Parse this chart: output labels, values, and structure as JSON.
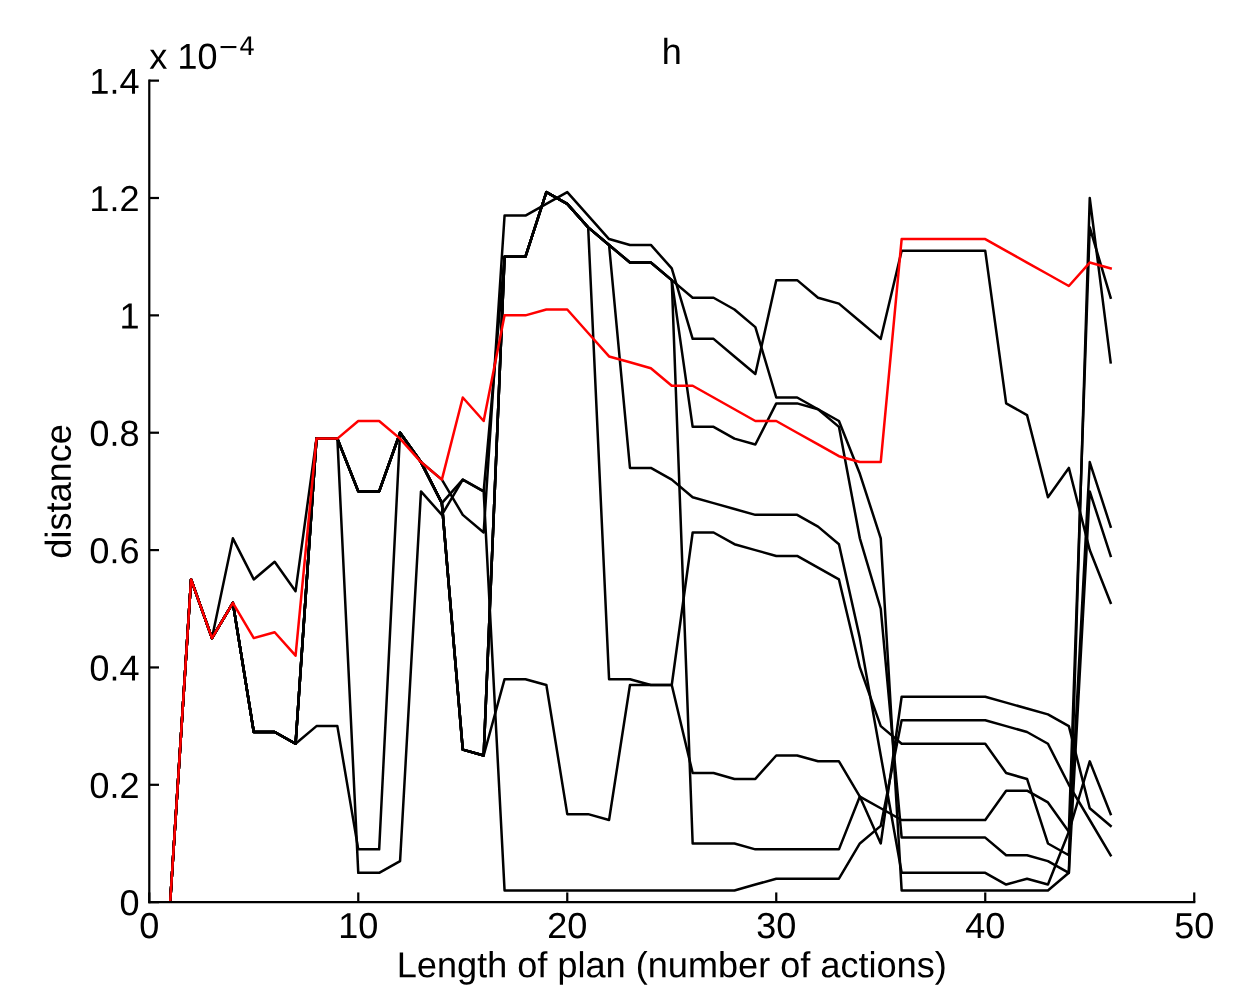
{
  "chart_data": {
    "type": "line",
    "title": "h",
    "xlabel": "Length of plan (number of actions)",
    "ylabel": "distance",
    "annotations": [
      "x 10$^{−4}$"
    ],
    "x": [
      1,
      2,
      3,
      4,
      5,
      6,
      7,
      8,
      9,
      10,
      11,
      12,
      13,
      14,
      15,
      16,
      17,
      18,
      19,
      20,
      21,
      22,
      23,
      24,
      25,
      26,
      27,
      28,
      29,
      30,
      31,
      32,
      33,
      34,
      35,
      36,
      37,
      38,
      39,
      40,
      41,
      42,
      43,
      44,
      45,
      46
    ],
    "xlim": [
      0,
      50
    ],
    "xticks": [
      0,
      10,
      20,
      30,
      40,
      50
    ],
    "ylim": [
      0,
      1.4
    ],
    "yticks": [
      0,
      0.2,
      0.4,
      0.6,
      0.8,
      1,
      1.2,
      1.4
    ],
    "grid": false,
    "legend": false,
    "marker": "none",
    "line_style": "solid",
    "series": [
      {
        "color": "#000000",
        "values": [
          0,
          0.55,
          0.45,
          0.51,
          0.29,
          0.29,
          0.27,
          0.79,
          0.79,
          0.7,
          0.7,
          0.8,
          0.75,
          0.68,
          0.26,
          0.25,
          1.1,
          1.1,
          1.21,
          1.19,
          1.15,
          1.12,
          1.09,
          1.09,
          1.06,
          1.03,
          1.03,
          1.01,
          0.98,
          0.86,
          0.86,
          0.84,
          0.82,
          0.73,
          0.62,
          0.02,
          0.02,
          0.02,
          0.02,
          0.02,
          0.02,
          0.02,
          0.02,
          0.05,
          1.2,
          0.92
        ]
      },
      {
        "color": "#000000",
        "values": [
          0,
          0.55,
          0.45,
          0.62,
          0.55,
          0.58,
          0.53,
          0.79,
          0.79,
          0.7,
          0.7,
          0.8,
          0.75,
          0.72,
          0.66,
          0.63,
          1.17,
          1.17,
          1.19,
          1.21,
          1.17,
          1.13,
          1.12,
          1.12,
          1.08,
          0.96,
          0.96,
          0.93,
          0.9,
          1.06,
          1.06,
          1.03,
          1.02,
          0.99,
          0.96,
          1.11,
          1.11,
          1.11,
          1.11,
          1.11,
          0.85,
          0.83,
          0.69,
          0.74,
          0.6,
          0.51
        ]
      },
      {
        "color": "#000000",
        "values": [
          0,
          0.55,
          0.45,
          0.51,
          0.29,
          0.29,
          0.27,
          0.3,
          0.3,
          0.09,
          0.09,
          0.8,
          0.75,
          0.68,
          0.72,
          0.7,
          0.02,
          0.02,
          0.02,
          0.02,
          0.02,
          0.02,
          0.02,
          0.02,
          0.02,
          0.02,
          0.02,
          0.02,
          0.03,
          0.04,
          0.04,
          0.04,
          0.04,
          0.1,
          0.13,
          0.31,
          0.31,
          0.31,
          0.31,
          0.31,
          0.3,
          0.29,
          0.27,
          0.2,
          0.14,
          0.08
        ]
      },
      {
        "color": "#000000",
        "values": [
          0,
          0.55,
          0.45,
          0.51,
          0.29,
          0.29,
          0.27,
          0.79,
          0.79,
          0.05,
          0.05,
          0.07,
          0.7,
          0.66,
          0.72,
          0.7,
          1.1,
          1.1,
          1.21,
          1.19,
          1.15,
          1.12,
          0.74,
          0.74,
          0.72,
          0.69,
          0.68,
          0.67,
          0.66,
          0.66,
          0.66,
          0.64,
          0.61,
          0.45,
          0.25,
          0.05,
          0.05,
          0.05,
          0.05,
          0.05,
          0.03,
          0.04,
          0.03,
          0.12,
          1.15,
          1.03
        ]
      },
      {
        "color": "#000000",
        "values": [
          0,
          0.55,
          0.45,
          0.51,
          0.29,
          0.29,
          0.27,
          0.79,
          0.79,
          0.7,
          0.7,
          0.8,
          0.75,
          0.68,
          0.26,
          0.25,
          1.1,
          1.1,
          1.21,
          1.19,
          1.15,
          1.12,
          1.09,
          1.09,
          1.06,
          0.81,
          0.81,
          0.79,
          0.78,
          0.85,
          0.85,
          0.84,
          0.81,
          0.62,
          0.5,
          0.11,
          0.11,
          0.11,
          0.11,
          0.11,
          0.08,
          0.08,
          0.07,
          0.05,
          0.7,
          0.59
        ]
      },
      {
        "color": "#000000",
        "values": [
          0,
          0.55,
          0.45,
          0.51,
          0.29,
          0.29,
          0.27,
          0.79,
          0.79,
          0.7,
          0.7,
          0.8,
          0.75,
          0.68,
          0.26,
          0.25,
          0.38,
          0.38,
          0.37,
          0.15,
          0.15,
          0.14,
          0.37,
          0.37,
          0.37,
          0.63,
          0.63,
          0.61,
          0.6,
          0.59,
          0.59,
          0.57,
          0.55,
          0.4,
          0.3,
          0.27,
          0.27,
          0.27,
          0.27,
          0.27,
          0.22,
          0.21,
          0.1,
          0.08,
          0.75,
          0.64
        ]
      },
      {
        "color": "#000000",
        "values": [
          0,
          0.55,
          0.45,
          0.51,
          0.29,
          0.29,
          0.27,
          0.79,
          0.79,
          0.7,
          0.7,
          0.8,
          0.75,
          0.68,
          0.26,
          0.25,
          1.1,
          1.1,
          1.21,
          1.19,
          1.15,
          0.38,
          0.38,
          0.37,
          0.37,
          0.22,
          0.22,
          0.21,
          0.21,
          0.25,
          0.25,
          0.24,
          0.24,
          0.18,
          0.1,
          0.35,
          0.35,
          0.35,
          0.35,
          0.35,
          0.34,
          0.33,
          0.32,
          0.3,
          0.16,
          0.13
        ]
      },
      {
        "color": "#000000",
        "values": [
          0,
          0.55,
          0.45,
          0.51,
          0.29,
          0.29,
          0.27,
          0.79,
          0.79,
          0.7,
          0.7,
          0.8,
          0.75,
          0.68,
          0.26,
          0.25,
          1.1,
          1.1,
          1.21,
          1.19,
          1.15,
          1.12,
          1.09,
          1.09,
          1.06,
          0.1,
          0.1,
          0.1,
          0.09,
          0.09,
          0.09,
          0.09,
          0.09,
          0.18,
          0.16,
          0.14,
          0.14,
          0.14,
          0.14,
          0.14,
          0.19,
          0.19,
          0.17,
          0.12,
          0.24,
          0.15
        ]
      },
      {
        "color": "#ff0000",
        "values": [
          0,
          0.55,
          0.45,
          0.51,
          0.45,
          0.46,
          0.42,
          0.79,
          0.79,
          0.82,
          0.82,
          0.79,
          0.75,
          0.72,
          0.86,
          0.82,
          1.0,
          1.0,
          1.01,
          1.01,
          0.97,
          0.93,
          0.92,
          0.91,
          0.88,
          0.88,
          0.86,
          0.84,
          0.82,
          0.82,
          0.8,
          0.78,
          0.76,
          0.75,
          0.75,
          1.13,
          1.13,
          1.13,
          1.13,
          1.13,
          1.11,
          1.09,
          1.07,
          1.05,
          1.09,
          1.08
        ]
      }
    ]
  }
}
